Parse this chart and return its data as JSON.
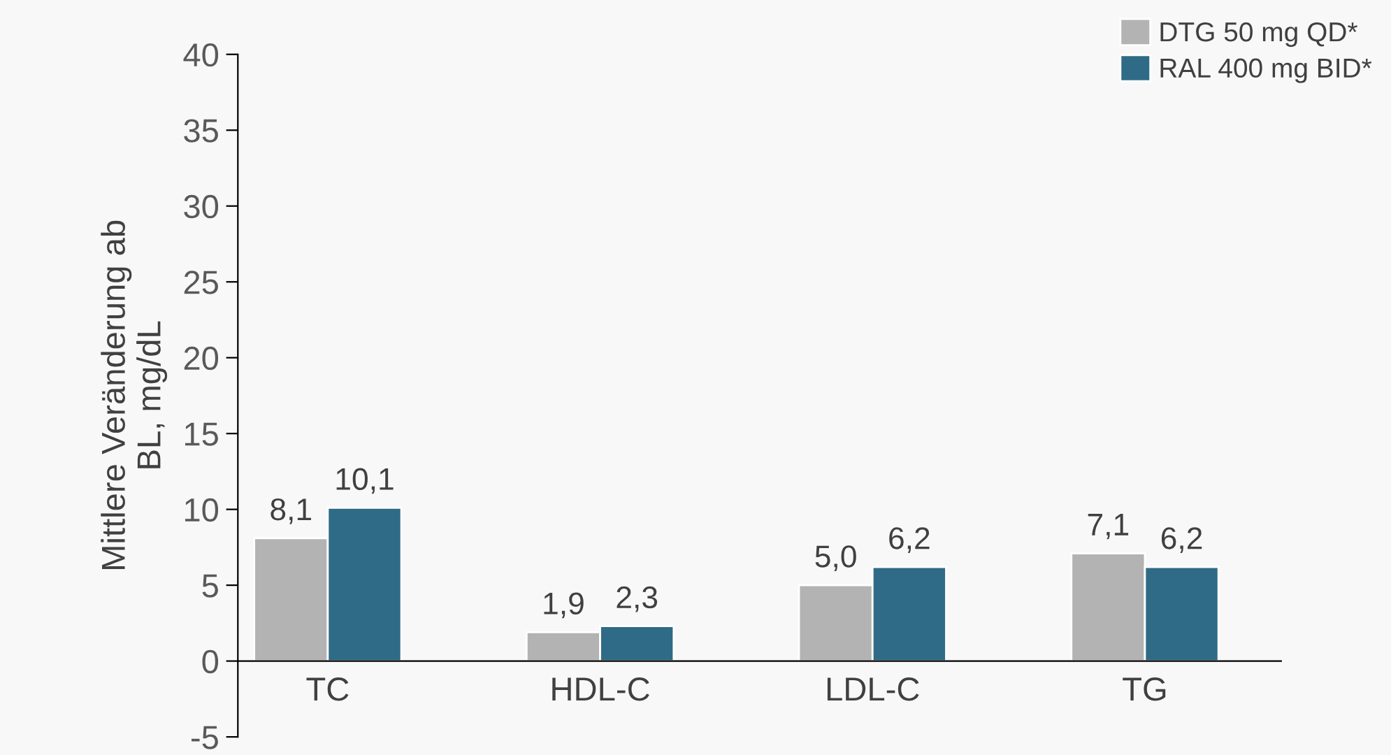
{
  "chart_data": {
    "type": "bar",
    "ylabel": "Mittlere Veränderung ab\nBL, mg/dL",
    "categories": [
      "TC",
      "HDL-C",
      "LDL-C",
      "TG"
    ],
    "series": [
      {
        "name": "DTG 50 mg QD*",
        "color": "#b3b3b3",
        "values": [
          8.1,
          1.9,
          5.0,
          7.1
        ],
        "value_labels": [
          "8,1",
          "1,9",
          "5,0",
          "7,1"
        ]
      },
      {
        "name": "RAL 400 mg BID*",
        "color": "#2f6b86",
        "values": [
          10.1,
          2.3,
          6.2,
          6.2
        ],
        "value_labels": [
          "10,1",
          "2,3",
          "6,2",
          "6,2"
        ]
      }
    ],
    "ylim": [
      -5,
      40
    ],
    "yticks": [
      -5,
      0,
      5,
      10,
      15,
      20,
      25,
      30,
      35,
      40
    ],
    "grid": false,
    "legend": "top right"
  }
}
